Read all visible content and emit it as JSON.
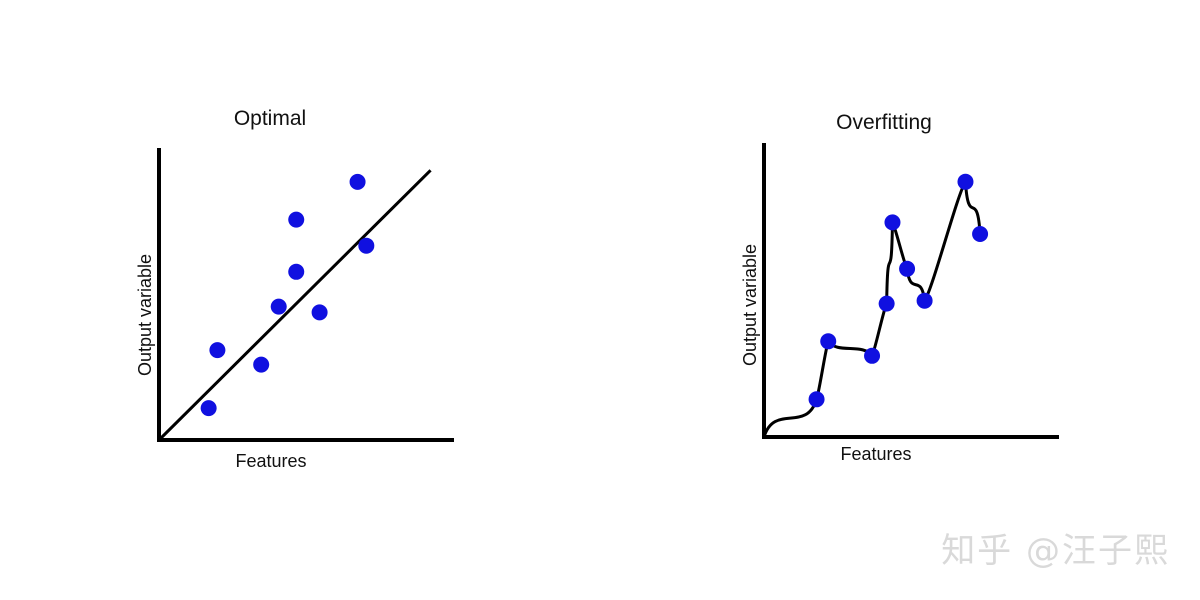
{
  "watermark": "知乎 @汪子熙",
  "chart_data": [
    {
      "type": "scatter",
      "title": "Optimal",
      "xlabel": "Features",
      "ylabel": "Output variable",
      "xlim": [
        0,
        10
      ],
      "ylim": [
        0,
        10
      ],
      "fit": "linear",
      "fit_line": [
        [
          0,
          0
        ],
        [
          9.3,
          9.3
        ]
      ],
      "points": [
        {
          "x": 1.7,
          "y": 1.1
        },
        {
          "x": 2.0,
          "y": 3.1
        },
        {
          "x": 3.5,
          "y": 2.6
        },
        {
          "x": 4.1,
          "y": 4.6
        },
        {
          "x": 4.7,
          "y": 5.8
        },
        {
          "x": 4.7,
          "y": 7.6
        },
        {
          "x": 5.5,
          "y": 4.4
        },
        {
          "x": 6.8,
          "y": 8.9
        },
        {
          "x": 7.1,
          "y": 6.7
        }
      ],
      "point_color": "#1010e0",
      "line_color": "#000000"
    },
    {
      "type": "scatter",
      "title": "Overfitting",
      "xlabel": "Features",
      "ylabel": "Output variable",
      "xlim": [
        0,
        10
      ],
      "ylim": [
        0,
        10
      ],
      "fit": "curve-through-points",
      "points": [
        {
          "x": 1.8,
          "y": 1.3
        },
        {
          "x": 2.2,
          "y": 3.3
        },
        {
          "x": 3.7,
          "y": 2.8
        },
        {
          "x": 4.2,
          "y": 4.6
        },
        {
          "x": 4.4,
          "y": 7.4
        },
        {
          "x": 4.9,
          "y": 5.8
        },
        {
          "x": 5.5,
          "y": 4.7
        },
        {
          "x": 6.9,
          "y": 8.8
        },
        {
          "x": 7.4,
          "y": 7.0
        }
      ],
      "point_color": "#1010e0",
      "line_color": "#000000"
    }
  ]
}
